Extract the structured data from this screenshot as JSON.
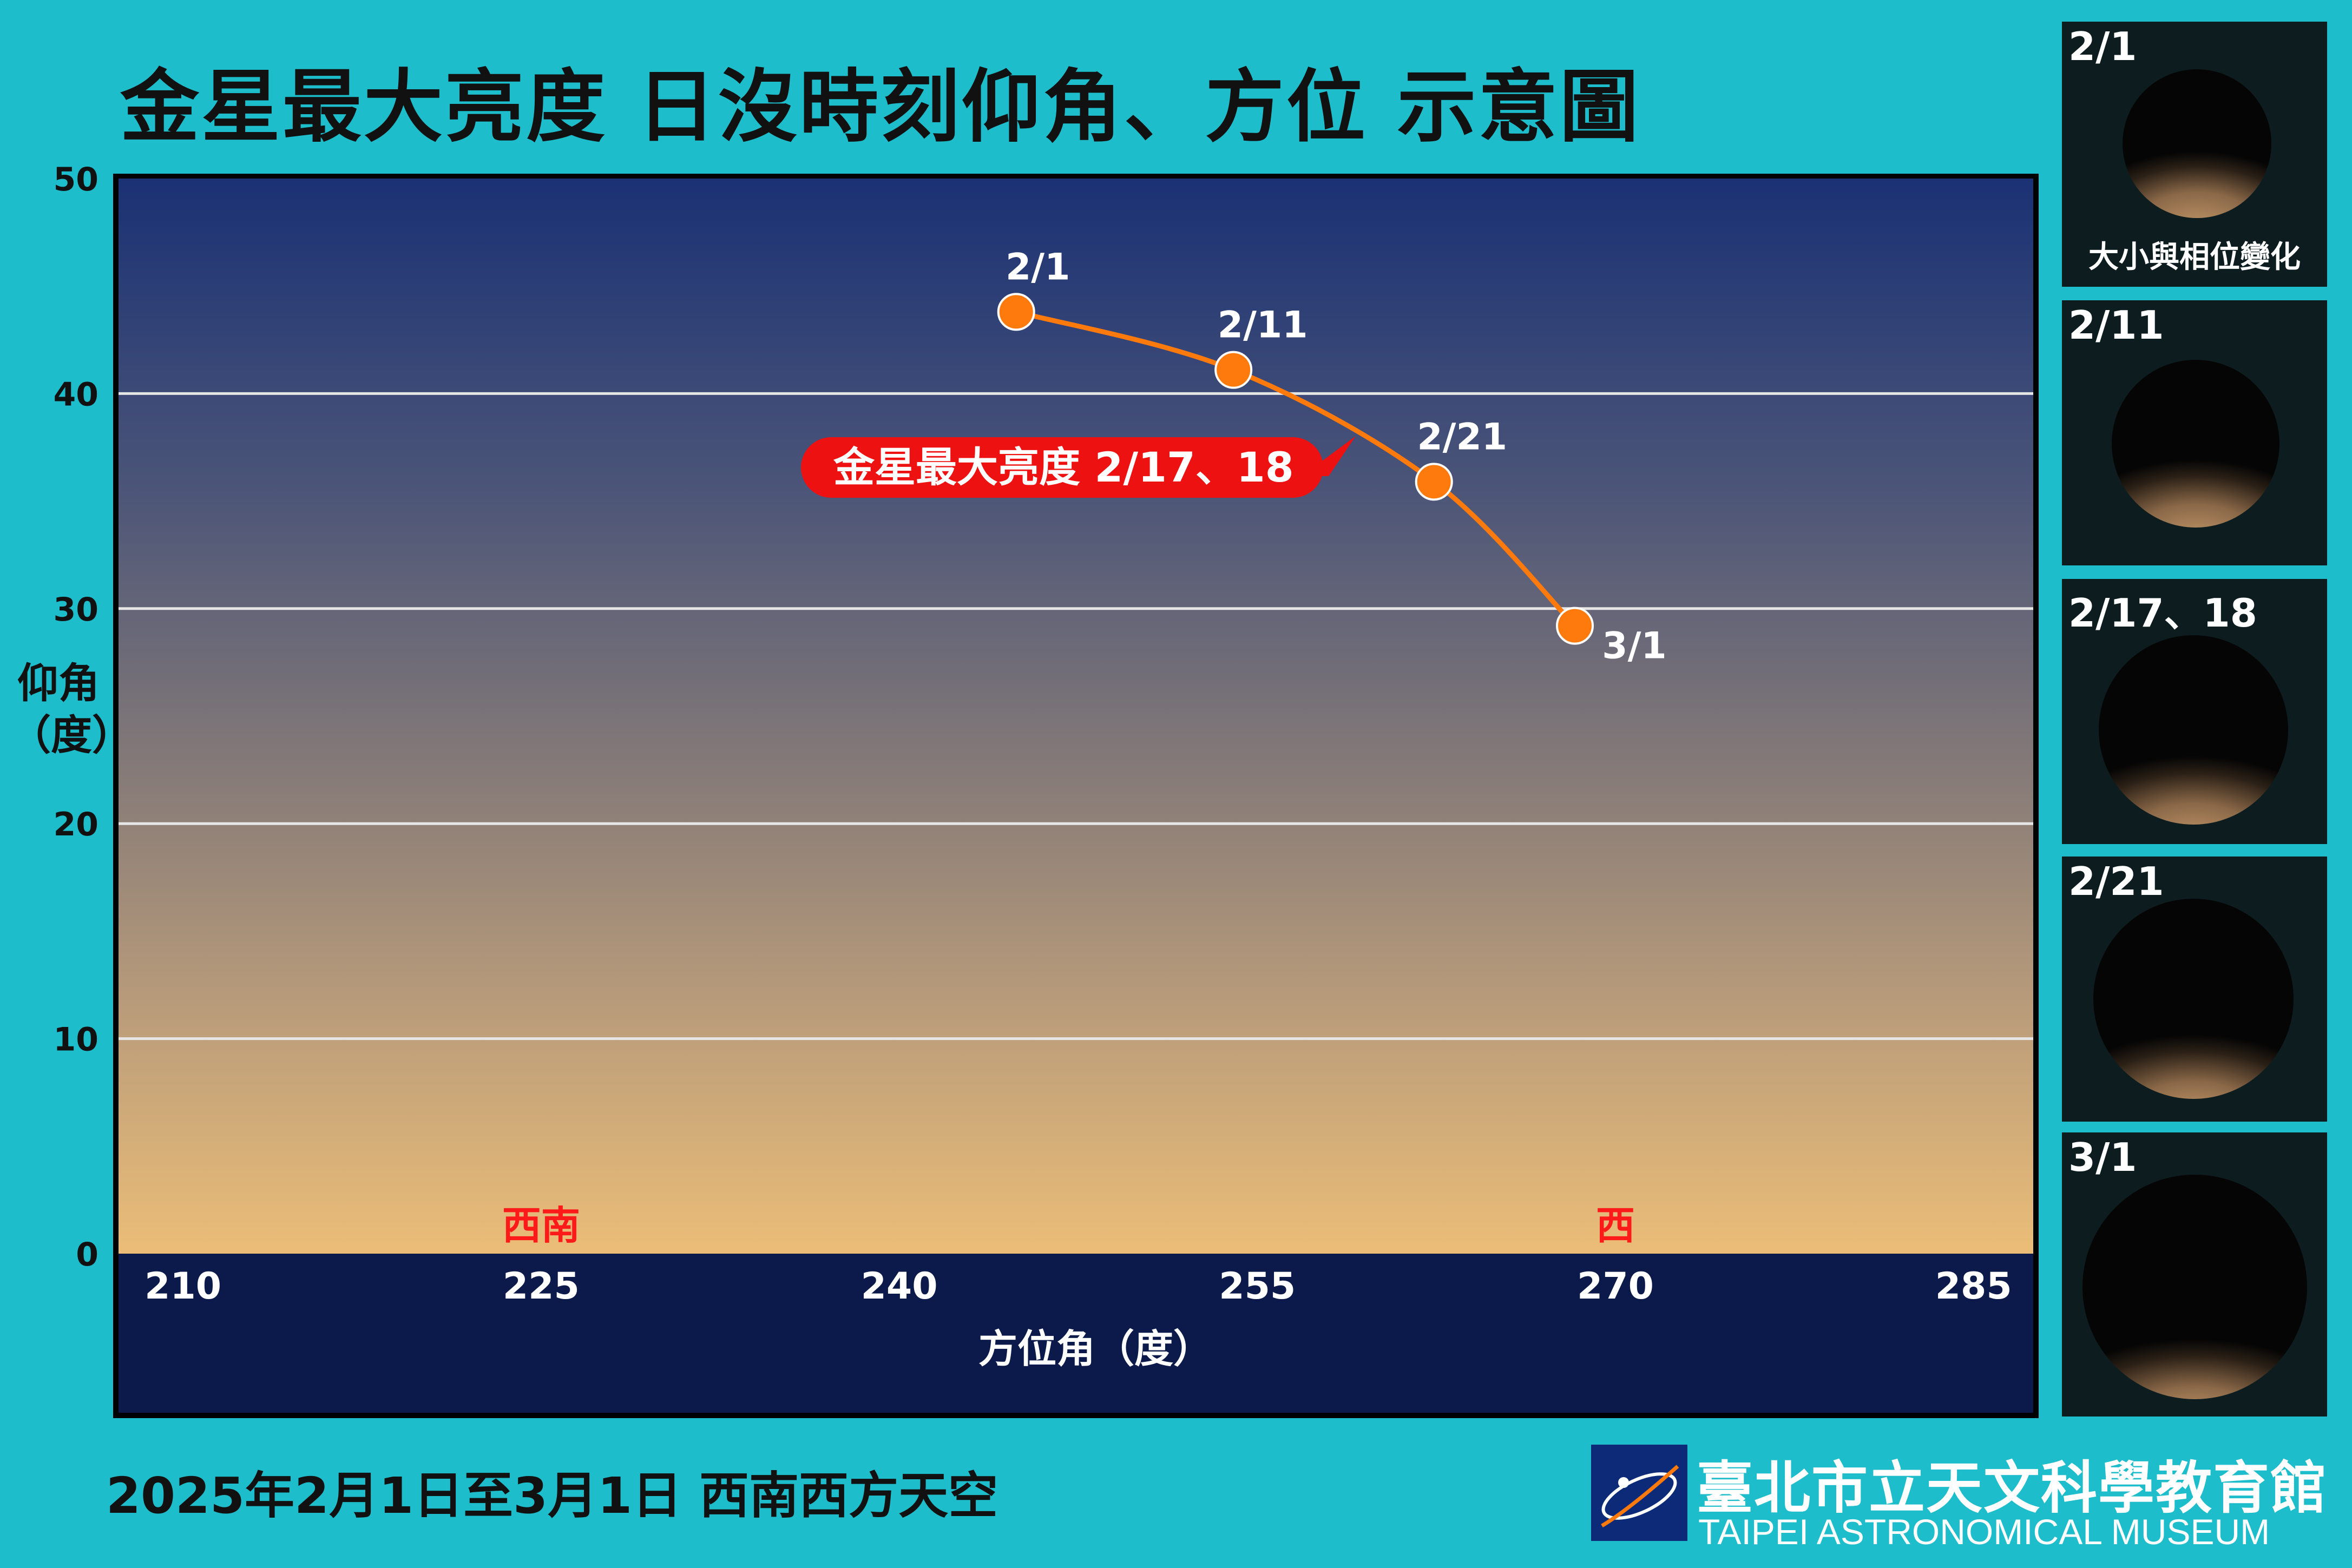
{
  "title": "金星最大亮度 日沒時刻仰角、方位 示意圖",
  "y_axis_label": {
    "line1": "仰角",
    "line2": "（度）"
  },
  "x_axis_label": "方位角（度）",
  "chart_data": {
    "type": "line",
    "title": "金星最大亮度 日沒時刻仰角、方位 示意圖",
    "xlabel": "方位角（度）",
    "ylabel": "仰角（度）",
    "xlim": [
      207.3,
      287.5
    ],
    "ylim": [
      0,
      50
    ],
    "x_ticks": [
      210,
      225,
      240,
      255,
      270,
      285
    ],
    "y_ticks": [
      0,
      10,
      20,
      30,
      40,
      50
    ],
    "grid": "horizontal",
    "series": [
      {
        "name": "金星",
        "color": "#ff7a0d",
        "points": [
          {
            "label": "2/1",
            "x": 244.9,
            "y": 43.8
          },
          {
            "label": "2/11",
            "x": 254.0,
            "y": 41.1
          },
          {
            "label": "2/21",
            "x": 262.4,
            "y": 35.9
          },
          {
            "label": "3/1",
            "x": 268.3,
            "y": 29.2
          }
        ]
      }
    ],
    "annotation": {
      "text": "金星最大亮度  2/17、18",
      "color": "#ee1111"
    },
    "direction_labels": [
      {
        "text": "西南",
        "x": 225
      },
      {
        "text": "西",
        "x": 270
      }
    ]
  },
  "footer": "2025年2月1日至3月1日 西南西方天空",
  "logo": {
    "chinese": "臺北市立天文科學教育館",
    "english": "TAIPEI ASTRONOMICAL MUSEUM"
  },
  "phase_panels": [
    {
      "label": "2/1",
      "lit_fraction": 0.42
    },
    {
      "label": "2/11",
      "lit_fraction": 0.33
    },
    {
      "label": "2/17、18",
      "lit_fraction": 0.28
    },
    {
      "label": "2/21",
      "lit_fraction": 0.24
    },
    {
      "label": "3/1",
      "lit_fraction": 0.18
    }
  ],
  "phase_caption": "大小與相位變化"
}
